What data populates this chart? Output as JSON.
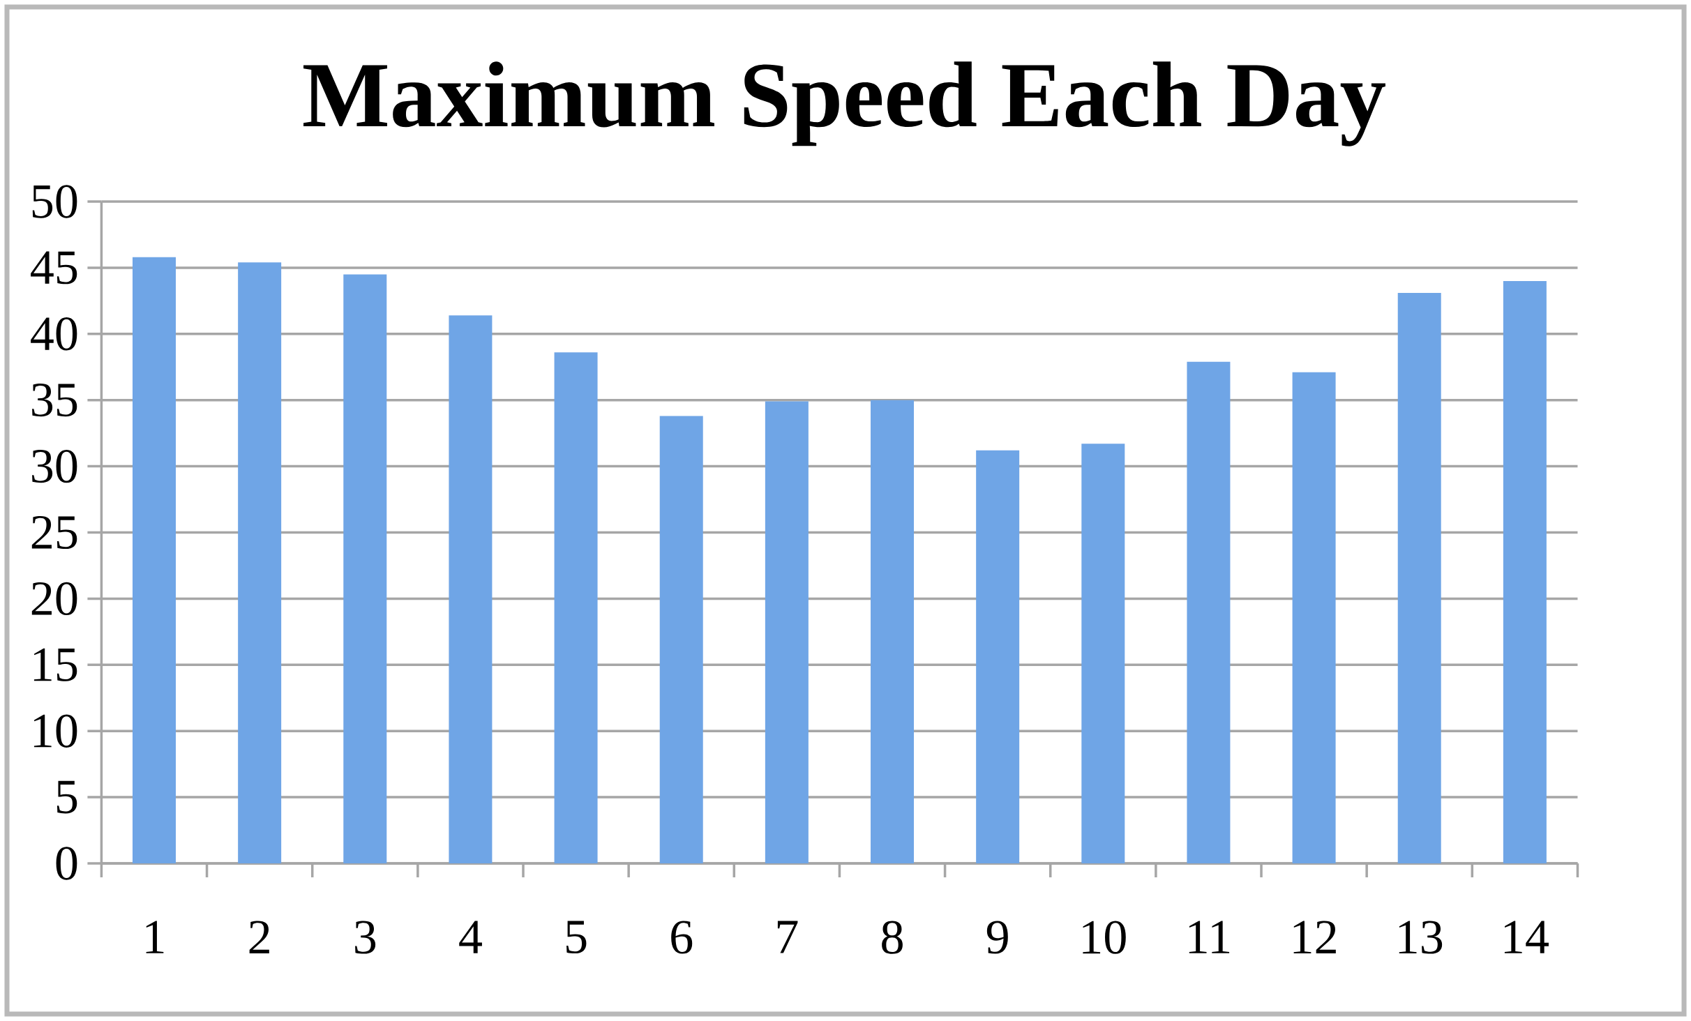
{
  "chart_data": {
    "type": "bar",
    "title": "Maximum Speed Each Day",
    "categories": [
      "1",
      "2",
      "3",
      "4",
      "5",
      "6",
      "7",
      "8",
      "9",
      "10",
      "11",
      "12",
      "13",
      "14"
    ],
    "values": [
      45.8,
      45.4,
      44.5,
      41.4,
      38.6,
      33.8,
      34.9,
      35.0,
      31.2,
      31.7,
      37.9,
      37.1,
      43.1,
      44.0
    ],
    "color": "#6fa5e6",
    "ylim": [
      0,
      50
    ],
    "yticks": [
      0,
      5,
      10,
      15,
      20,
      25,
      30,
      35,
      40,
      45,
      50
    ],
    "grid": "y"
  }
}
